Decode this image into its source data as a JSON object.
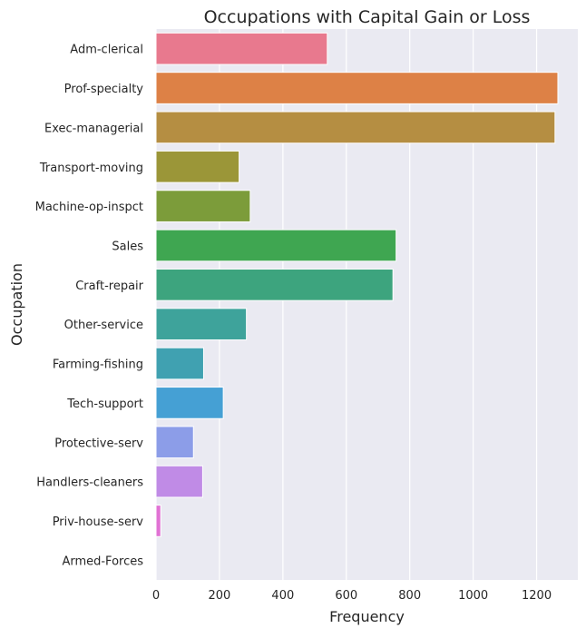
{
  "chart_data": {
    "type": "bar",
    "orientation": "horizontal",
    "title": "Occupations with Capital Gain or Loss",
    "xlabel": "Frequency",
    "ylabel": "Occupation",
    "categories": [
      "Adm-clerical",
      "Prof-specialty",
      "Exec-managerial",
      "Transport-moving",
      "Machine-op-inspct",
      "Sales",
      "Craft-repair",
      "Other-service",
      "Farming-fishing",
      "Tech-support",
      "Protective-serv",
      "Handlers-cleaners",
      "Priv-house-serv",
      "Armed-Forces"
    ],
    "values": [
      540,
      1267,
      1258,
      262,
      297,
      757,
      747,
      285,
      150,
      212,
      118,
      147,
      15,
      0
    ],
    "xlim": [
      0,
      1330
    ],
    "xticks": [
      0,
      200,
      400,
      600,
      800,
      1000,
      1200
    ],
    "grid": true,
    "colors": [
      "#e8798e",
      "#dd8146",
      "#b58e42",
      "#9b9638",
      "#7c9c3a",
      "#3fa651",
      "#3da47e",
      "#3ea39b",
      "#40a1b1",
      "#45a0d4",
      "#8c9de8",
      "#c08be6",
      "#e172d4",
      "#f06ea7"
    ],
    "background": "#eaeaf2"
  }
}
